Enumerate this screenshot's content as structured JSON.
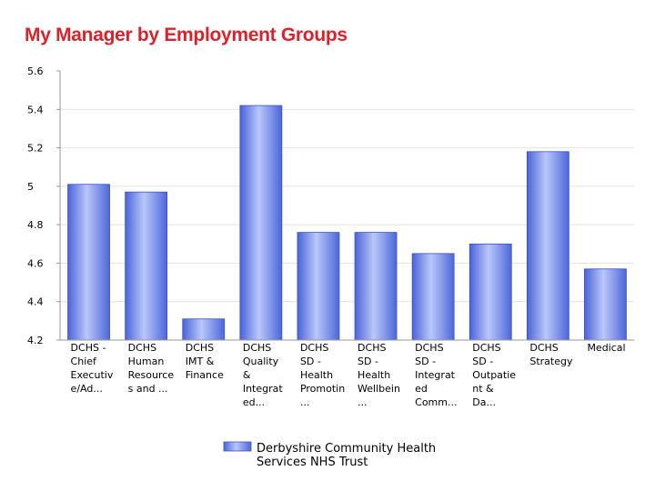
{
  "page": {
    "title": "My Manager by Employment Groups"
  },
  "chart_data": {
    "type": "bar",
    "title": "My Manager by Employment Groups",
    "xlabel": "",
    "ylabel": "",
    "ylim": [
      4.2,
      5.6
    ],
    "yticks": [
      "4.2",
      "4.4",
      "4.6",
      "4.8",
      "5",
      "5.2",
      "5.4",
      "5.6"
    ],
    "grid": true,
    "legend_position": "bottom",
    "categories": [
      [
        "DCHS -",
        "Chief",
        "Executiv",
        "e/Ad..."
      ],
      [
        "DCHS",
        "Human",
        "Resource",
        "s and ..."
      ],
      [
        "DCHS",
        "IMT &",
        "Finance"
      ],
      [
        "DCHS",
        "Quality",
        "&",
        "Integrat",
        "ed..."
      ],
      [
        "DCHS",
        "SD -",
        "Health",
        "Promotin",
        "..."
      ],
      [
        "DCHS",
        "SD -",
        "Health",
        "Wellbein",
        "..."
      ],
      [
        "DCHS",
        "SD -",
        "Integrat",
        "ed",
        "Comm..."
      ],
      [
        "DCHS",
        "SD -",
        "Outpatie",
        "nt &",
        "Da..."
      ],
      [
        "DCHS",
        "Strategy"
      ],
      [
        "Medical"
      ]
    ],
    "series": [
      {
        "name": "Derbyshire Community Health Services NHS Trust",
        "legend_lines": [
          "Derbyshire Community Health",
          "Services NHS Trust"
        ],
        "color": "#6f86e8",
        "values": [
          5.01,
          4.97,
          4.31,
          5.42,
          4.76,
          4.76,
          4.65,
          4.7,
          5.18,
          4.57
        ]
      }
    ]
  }
}
